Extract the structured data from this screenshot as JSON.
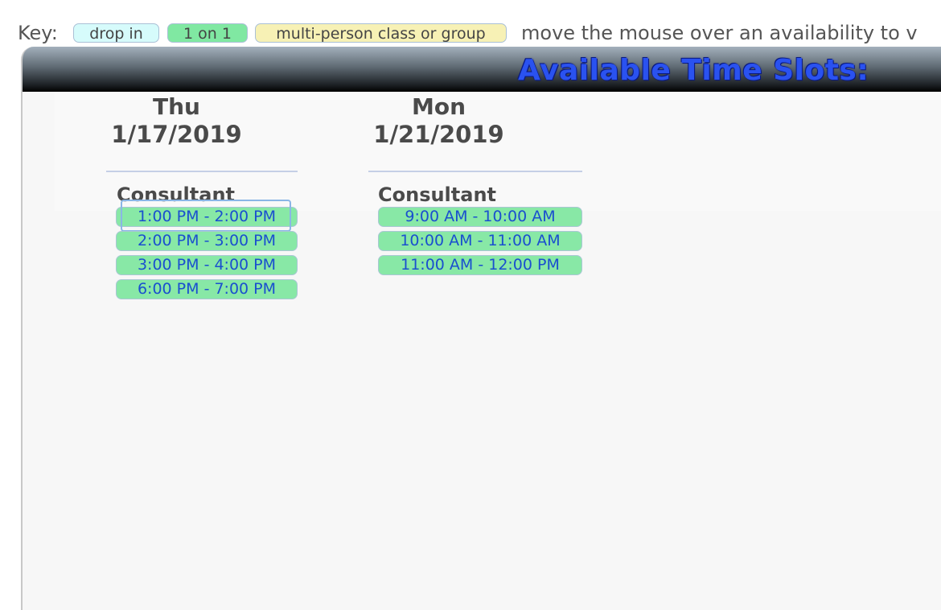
{
  "key": {
    "label": "Key:",
    "chips": [
      {
        "label": "drop in",
        "color": "#d6fbfb"
      },
      {
        "label": "1 on 1",
        "color": "#80e8a2"
      },
      {
        "label": "multi-person class or group",
        "color": "#f7f1b5"
      }
    ],
    "hint": "move the mouse over an availability to v"
  },
  "panel": {
    "title": "Available Time Slots:",
    "title_color": "#2a52f0"
  },
  "days": [
    {
      "day": "Thu",
      "date": "1/17/2019",
      "role": "Consultant",
      "slots": [
        "1:00 PM - 2:00 PM",
        "2:00 PM - 3:00 PM",
        "3:00 PM - 4:00 PM",
        "6:00 PM - 7:00 PM"
      ]
    },
    {
      "day": "Mon",
      "date": "1/21/2019",
      "role": "Consultant",
      "slots": [
        "9:00 AM - 10:00 AM",
        "10:00 AM - 11:00 AM",
        "11:00 AM - 12:00 PM"
      ]
    }
  ],
  "slot_color": "#88e8a6"
}
